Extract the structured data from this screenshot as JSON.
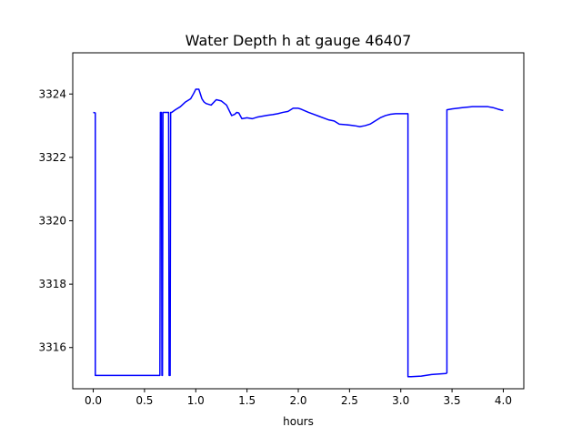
{
  "chart_data": {
    "type": "line",
    "title": "Water Depth h at gauge 46407",
    "xlabel": "hours",
    "ylabel": "",
    "xlim": [
      -0.2,
      4.2
    ],
    "ylim": [
      3314.7,
      3325.3
    ],
    "xticks": [
      0.0,
      0.5,
      1.0,
      1.5,
      2.0,
      2.5,
      3.0,
      3.5,
      4.0
    ],
    "xtick_labels": [
      "0.0",
      "0.5",
      "1.0",
      "1.5",
      "2.0",
      "2.5",
      "3.0",
      "3.5",
      "4.0"
    ],
    "yticks": [
      3316,
      3318,
      3320,
      3322,
      3324
    ],
    "ytick_labels": [
      "3316",
      "3318",
      "3320",
      "3322",
      "3324"
    ],
    "grid": false,
    "series": [
      {
        "color": "#0000ff",
        "x": [
          0.0,
          0.02,
          0.02,
          0.62,
          0.65,
          0.655,
          0.665,
          0.67,
          0.675,
          0.68,
          0.69,
          0.735,
          0.74,
          0.75,
          0.755,
          0.765,
          0.8,
          0.85,
          0.9,
          0.95,
          0.98,
          1.0,
          1.03,
          1.06,
          1.08,
          1.1,
          1.15,
          1.2,
          1.25,
          1.3,
          1.35,
          1.38,
          1.4,
          1.42,
          1.45,
          1.5,
          1.55,
          1.6,
          1.65,
          1.7,
          1.75,
          1.8,
          1.85,
          1.9,
          1.95,
          2.0,
          2.02,
          2.1,
          2.2,
          2.3,
          2.35,
          2.4,
          2.5,
          2.55,
          2.6,
          2.65,
          2.7,
          2.75,
          2.8,
          2.85,
          2.9,
          2.95,
          3.0,
          3.07,
          3.07,
          3.1,
          3.2,
          3.3,
          3.44,
          3.45,
          3.45,
          3.5,
          3.6,
          3.7,
          3.8,
          3.85,
          3.9,
          3.95,
          4.0
        ],
        "y": [
          3323.42,
          3323.4,
          3315.12,
          3315.12,
          3315.12,
          3323.42,
          3323.42,
          3315.12,
          3315.12,
          3323.42,
          3323.42,
          3323.42,
          3315.12,
          3315.12,
          3323.42,
          3323.42,
          3323.5,
          3323.6,
          3323.75,
          3323.85,
          3324.02,
          3324.15,
          3324.15,
          3323.85,
          3323.75,
          3323.7,
          3323.65,
          3323.82,
          3323.78,
          3323.65,
          3323.32,
          3323.36,
          3323.42,
          3323.4,
          3323.22,
          3323.25,
          3323.22,
          3323.27,
          3323.3,
          3323.33,
          3323.35,
          3323.38,
          3323.42,
          3323.45,
          3323.55,
          3323.55,
          3323.53,
          3323.42,
          3323.3,
          3323.18,
          3323.15,
          3323.05,
          3323.02,
          3323.0,
          3322.97,
          3323.0,
          3323.05,
          3323.15,
          3323.25,
          3323.32,
          3323.36,
          3323.38,
          3323.38,
          3323.38,
          3315.08,
          3315.08,
          3315.1,
          3315.15,
          3315.18,
          3315.2,
          3323.5,
          3323.53,
          3323.57,
          3323.6,
          3323.6,
          3323.6,
          3323.57,
          3323.52,
          3323.48
        ]
      }
    ]
  }
}
